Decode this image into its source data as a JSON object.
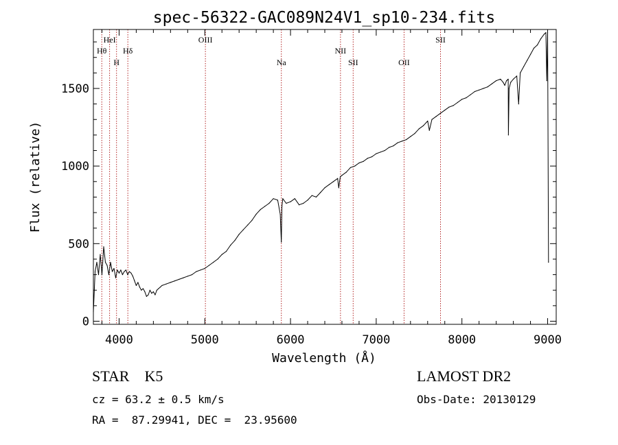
{
  "chart_data": {
    "type": "line",
    "title": "spec-56322-GAC089N24V1_sp10-234.fits",
    "xlabel": "Wavelength (Å)",
    "ylabel": "Flux (relative)",
    "xlim": [
      3700,
      9100
    ],
    "ylim": [
      -20,
      1880
    ],
    "xticks": [
      4000,
      5000,
      6000,
      7000,
      8000,
      9000
    ],
    "xtick_labels": [
      "4000",
      "5000",
      "6000",
      "7000",
      "8000",
      "9000"
    ],
    "yticks": [
      0,
      500,
      1000,
      1500
    ],
    "ytick_labels": [
      "0",
      "500",
      "1000",
      "1500"
    ],
    "grid": false,
    "legend": "none",
    "line_color": "#000000",
    "marker_color": "#b22222",
    "series": [
      {
        "x": [
          3700,
          3720,
          3740,
          3760,
          3780,
          3800,
          3820,
          3840,
          3860,
          3880,
          3900,
          3920,
          3940,
          3960,
          3980,
          4000,
          4020,
          4040,
          4060,
          4080,
          4100,
          4120,
          4140,
          4160,
          4180,
          4200,
          4220,
          4240,
          4260,
          4280,
          4300,
          4320,
          4340,
          4360,
          4380,
          4400,
          4420,
          4440,
          4460,
          4480,
          4500,
          4550,
          4600,
          4650,
          4700,
          4750,
          4800,
          4850,
          4900,
          4950,
          5000,
          5050,
          5100,
          5150,
          5200,
          5250,
          5300,
          5350,
          5400,
          5450,
          5500,
          5550,
          5600,
          5650,
          5700,
          5750,
          5800,
          5850,
          5880,
          5893,
          5900,
          5910,
          5950,
          6000,
          6050,
          6100,
          6150,
          6200,
          6250,
          6300,
          6350,
          6400,
          6450,
          6500,
          6550,
          6563,
          6580,
          6600,
          6650,
          6700,
          6750,
          6800,
          6850,
          6900,
          6950,
          7000,
          7050,
          7100,
          7150,
          7200,
          7250,
          7300,
          7350,
          7400,
          7450,
          7500,
          7550,
          7600,
          7620,
          7650,
          7700,
          7750,
          7800,
          7850,
          7900,
          7950,
          8000,
          8050,
          8100,
          8150,
          8200,
          8250,
          8300,
          8350,
          8400,
          8450,
          8480,
          8500,
          8520,
          8540,
          8542,
          8550,
          8570,
          8600,
          8640,
          8662,
          8680,
          8720,
          8760,
          8800,
          8840,
          8880,
          8920,
          8960,
          8980,
          8990,
          9000,
          9010
        ],
        "y": [
          60,
          320,
          380,
          300,
          430,
          300,
          480,
          380,
          360,
          300,
          380,
          320,
          340,
          280,
          330,
          310,
          330,
          300,
          320,
          330,
          300,
          320,
          310,
          290,
          260,
          230,
          250,
          220,
          200,
          210,
          190,
          160,
          170,
          200,
          180,
          190,
          170,
          200,
          210,
          220,
          230,
          240,
          250,
          260,
          270,
          280,
          290,
          300,
          320,
          330,
          340,
          360,
          380,
          400,
          430,
          450,
          490,
          520,
          560,
          590,
          620,
          650,
          690,
          720,
          740,
          760,
          790,
          780,
          690,
          510,
          740,
          790,
          760,
          770,
          790,
          750,
          760,
          780,
          810,
          800,
          830,
          860,
          880,
          900,
          920,
          860,
          930,
          940,
          960,
          990,
          1000,
          1020,
          1030,
          1050,
          1060,
          1080,
          1090,
          1100,
          1120,
          1130,
          1150,
          1160,
          1170,
          1190,
          1210,
          1240,
          1260,
          1290,
          1230,
          1300,
          1320,
          1340,
          1360,
          1380,
          1390,
          1410,
          1430,
          1440,
          1460,
          1480,
          1490,
          1500,
          1510,
          1530,
          1550,
          1560,
          1540,
          1520,
          1550,
          1560,
          1200,
          1500,
          1540,
          1560,
          1580,
          1400,
          1600,
          1640,
          1680,
          1720,
          1760,
          1780,
          1820,
          1850,
          1860,
          1550,
          1860,
          380
        ]
      }
    ],
    "spectral_lines": [
      {
        "label": "Hθ",
        "wavelength": 3798,
        "row": 2
      },
      {
        "label": "HeI",
        "wavelength": 3889,
        "row": 1
      },
      {
        "label": "H",
        "wavelength": 3970,
        "row": 3
      },
      {
        "label": "Hδ",
        "wavelength": 4102,
        "row": 2
      },
      {
        "label": "OIII",
        "wavelength": 5007,
        "row": 1
      },
      {
        "label": "Na",
        "wavelength": 5893,
        "row": 3
      },
      {
        "label": "NII",
        "wavelength": 6583,
        "row": 2
      },
      {
        "label": "SII",
        "wavelength": 6731,
        "row": 3
      },
      {
        "label": "OII",
        "wavelength": 7325,
        "row": 3
      },
      {
        "label": "SII",
        "wavelength": 7750,
        "row": 1
      }
    ]
  },
  "info": {
    "classification": "STAR    K5",
    "survey": "LAMOST DR2",
    "redshift": "cz = 63.2 ± 0.5 km/s",
    "obs_date": "Obs-Date: 20130129",
    "coordinates": "RA =  87.29941, DEC =  23.95600"
  }
}
